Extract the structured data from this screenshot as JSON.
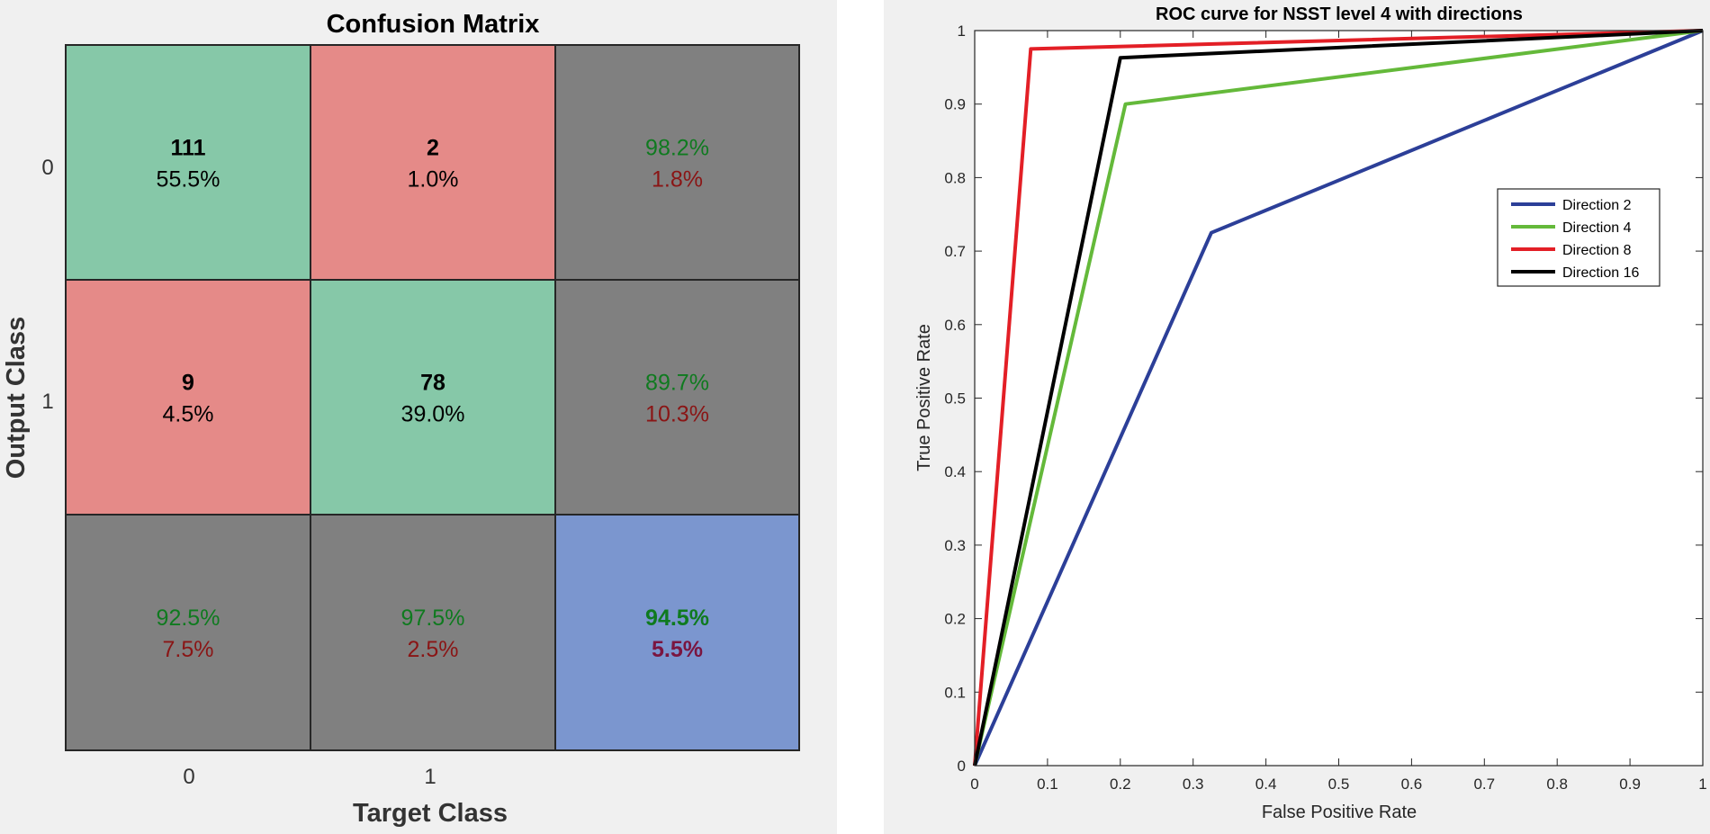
{
  "chart_data": [
    {
      "type": "heatmap",
      "title": "Confusion Matrix",
      "xlabel": "Target Class",
      "ylabel": "Output Class",
      "x_ticks": [
        "0",
        "1"
      ],
      "y_ticks": [
        "0",
        "1"
      ],
      "cells": [
        [
          {
            "count": "111",
            "pct": "55.5%"
          },
          {
            "count": "2",
            "pct": "1.0%"
          },
          {
            "good": "98.2%",
            "bad": "1.8%"
          }
        ],
        [
          {
            "count": "9",
            "pct": "4.5%"
          },
          {
            "count": "78",
            "pct": "39.0%"
          },
          {
            "good": "89.7%",
            "bad": "10.3%"
          }
        ],
        [
          {
            "good": "92.5%",
            "bad": "7.5%"
          },
          {
            "good": "97.5%",
            "bad": "2.5%"
          },
          {
            "good": "94.5%",
            "bad": "5.5%"
          }
        ]
      ],
      "colors": {
        "correct": "#86c8a8",
        "wrong": "#e58a88",
        "summary": "#808080",
        "overall": "#7b96cf",
        "good_text": "#0f7a1f",
        "bad_text": "#8a1515"
      }
    },
    {
      "type": "line",
      "title": "ROC curve for NSST level 4 with directions",
      "xlabel": "False Positive Rate",
      "ylabel": "True Positive Rate",
      "xlim": [
        0,
        1
      ],
      "ylim": [
        0,
        1
      ],
      "x_ticks": [
        "0",
        "0.1",
        "0.2",
        "0.3",
        "0.4",
        "0.5",
        "0.6",
        "0.7",
        "0.8",
        "0.9",
        "1"
      ],
      "y_ticks": [
        "0",
        "0.1",
        "0.2",
        "0.3",
        "0.4",
        "0.5",
        "0.6",
        "0.7",
        "0.8",
        "0.9",
        "1"
      ],
      "grid": false,
      "legend_position": "right",
      "series": [
        {
          "name": "Direction 2",
          "color": "#2c3f98",
          "x": [
            0,
            0.325,
            1
          ],
          "y": [
            0,
            0.725,
            1
          ]
        },
        {
          "name": "Direction 4",
          "color": "#64b93a",
          "x": [
            0,
            0.207,
            1
          ],
          "y": [
            0,
            0.9,
            1
          ]
        },
        {
          "name": "Direction 8",
          "color": "#e31f26",
          "x": [
            0,
            0.077,
            1
          ],
          "y": [
            0,
            0.975,
            1
          ]
        },
        {
          "name": "Direction 16",
          "color": "#000000",
          "x": [
            0,
            0.2,
            1
          ],
          "y": [
            0,
            0.963,
            1
          ]
        }
      ]
    }
  ]
}
